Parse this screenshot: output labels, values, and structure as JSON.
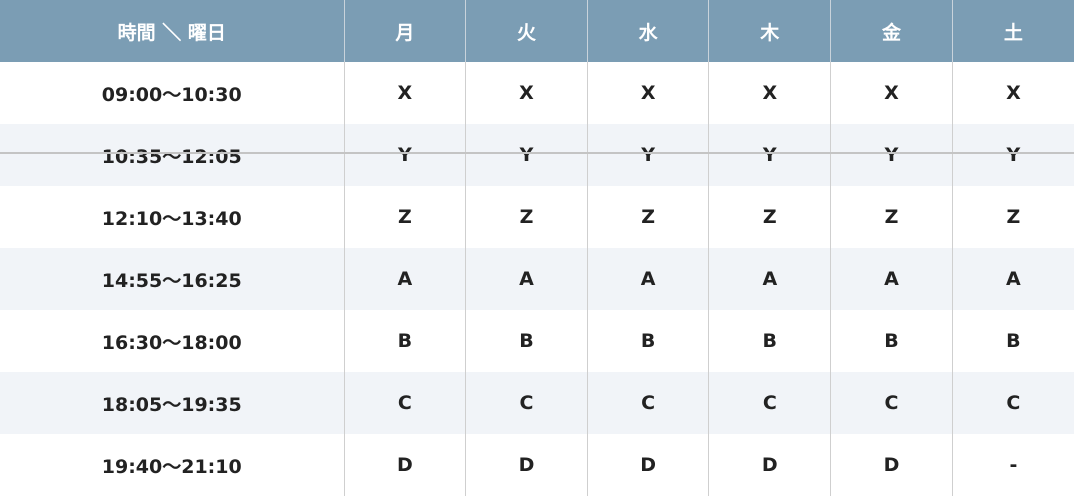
{
  "header": [
    "時間 ＼ 曜日",
    "月",
    "火",
    "水",
    "木",
    "金",
    "土"
  ],
  "rows": [
    {
      "time": "09:00〜10:30",
      "cells": [
        "X",
        "X",
        "X",
        "X",
        "X",
        "X"
      ]
    },
    {
      "time": "10:35〜12:05",
      "cells": [
        "Y",
        "Y",
        "Y",
        "Y",
        "Y",
        "Y"
      ]
    },
    {
      "time": "12:10〜13:40",
      "cells": [
        "Z",
        "Z",
        "Z",
        "Z",
        "Z",
        "Z"
      ]
    },
    {
      "time": "14:55〜16:25",
      "cells": [
        "A",
        "A",
        "A",
        "A",
        "A",
        "A"
      ]
    },
    {
      "time": "16:30〜18:00",
      "cells": [
        "B",
        "B",
        "B",
        "B",
        "B",
        "B"
      ]
    },
    {
      "time": "18:05〜19:35",
      "cells": [
        "C",
        "C",
        "C",
        "C",
        "C",
        "C"
      ]
    },
    {
      "time": "19:40〜21:10",
      "cells": [
        "D",
        "D",
        "D",
        "D",
        "D",
        "-"
      ]
    }
  ],
  "colors": {
    "header_bg": "#7b9db4",
    "alt_row_bg": "#f1f4f8"
  }
}
